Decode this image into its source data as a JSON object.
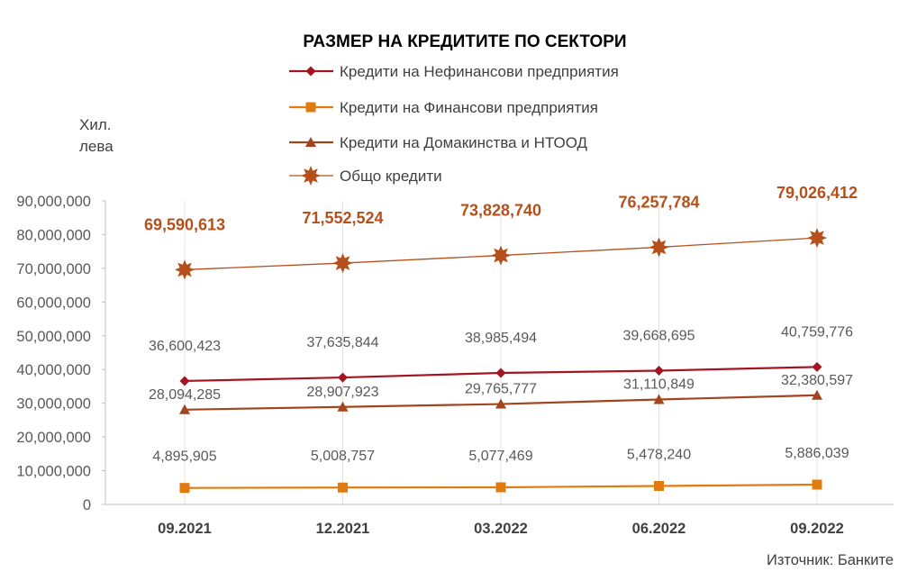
{
  "chart_data": {
    "type": "line",
    "title": "РАЗМЕР НА КРЕДИТИТЕ ПО СЕКТОРИ",
    "unit_label_line1": "Хил.",
    "unit_label_line2": "лева",
    "source": "Източник: Банките",
    "categories": [
      "09.2021",
      "12.2021",
      "03.2022",
      "06.2022",
      "09.2022"
    ],
    "ylim": [
      0,
      90000000
    ],
    "y_ticks": [
      "0",
      "10,000,000",
      "20,000,000",
      "30,000,000",
      "40,000,000",
      "50,000,000",
      "60,000,000",
      "70,000,000",
      "80,000,000",
      "90,000,000"
    ],
    "grid": "vertical lines at categories",
    "legend_position": "top",
    "series": [
      {
        "name": "Кредити на Нефинансови предприятия",
        "color": "#a31621",
        "marker": "diamond",
        "values": [
          36600423,
          37635844,
          38985494,
          39668695,
          40759776
        ],
        "labels": [
          "36,600,423",
          "37,635,844",
          "38,985,494",
          "39,668,695",
          "40,759,776"
        ]
      },
      {
        "name": "Кредити на Финансови предприятия",
        "color": "#e07c0f",
        "marker": "square",
        "values": [
          4895905,
          5008757,
          5077469,
          5478240,
          5886039
        ],
        "labels": [
          "4,895,905",
          "5,008,757",
          "5,077,469",
          "5,478,240",
          "5,886,039"
        ]
      },
      {
        "name": "Кредити на Домакинства и НТООД",
        "color": "#a0451e",
        "marker": "triangle",
        "values": [
          28094285,
          28907923,
          29765777,
          31110849,
          32380597
        ],
        "labels": [
          "28,094,285",
          "28,907,923",
          "29,765,777",
          "31,110,849",
          "32,380,597"
        ]
      },
      {
        "name": "Общо кредити",
        "color": "#b5501c",
        "marker": "star",
        "values": [
          69590613,
          71552524,
          73828740,
          76257784,
          79026412
        ],
        "labels": [
          "69,590,613",
          "71,552,524",
          "73,828,740",
          "76,257,784",
          "79,026,412"
        ]
      }
    ]
  }
}
